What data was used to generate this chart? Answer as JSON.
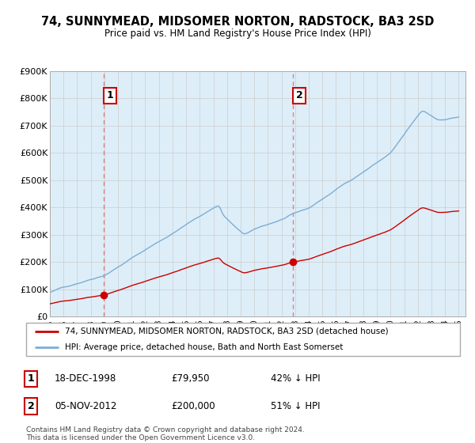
{
  "title": "74, SUNNYMEAD, MIDSOMER NORTON, RADSTOCK, BA3 2SD",
  "subtitle": "Price paid vs. HM Land Registry's House Price Index (HPI)",
  "legend_line1": "74, SUNNYMEAD, MIDSOMER NORTON, RADSTOCK, BA3 2SD (detached house)",
  "legend_line2": "HPI: Average price, detached house, Bath and North East Somerset",
  "sale1_date": "18-DEC-1998",
  "sale1_price": "£79,950",
  "sale1_info": "42% ↓ HPI",
  "sale2_date": "05-NOV-2012",
  "sale2_price": "£200,000",
  "sale2_info": "51% ↓ HPI",
  "footer": "Contains HM Land Registry data © Crown copyright and database right 2024.\nThis data is licensed under the Open Government Licence v3.0.",
  "hpi_color": "#7aaed6",
  "property_color": "#cc0000",
  "dashed_line_color": "#e08080",
  "shade_color": "#deeef8",
  "grid_color": "#cccccc",
  "ylim": [
    0,
    900000
  ],
  "yticks": [
    0,
    100000,
    200000,
    300000,
    400000,
    500000,
    600000,
    700000,
    800000,
    900000
  ],
  "ytick_labels": [
    "£0",
    "£100K",
    "£200K",
    "£300K",
    "£400K",
    "£500K",
    "£600K",
    "£700K",
    "£800K",
    "£900K"
  ],
  "sale1_year": 1998.96,
  "sale2_year": 2012.84,
  "sale1_price_val": 79950,
  "sale2_price_val": 200000
}
